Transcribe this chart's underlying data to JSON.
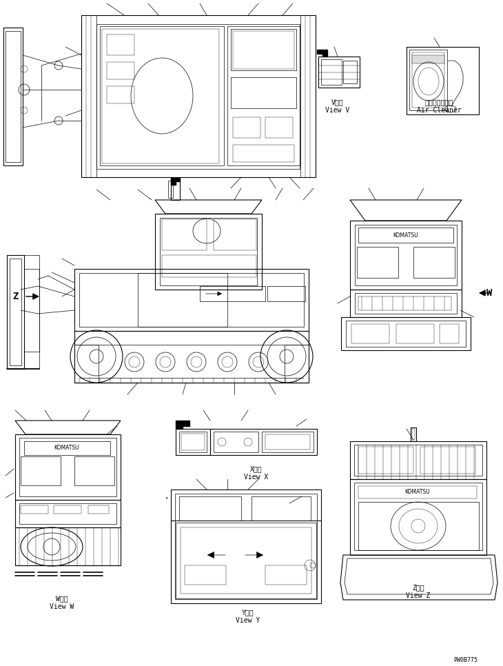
{
  "bg_color": "#ffffff",
  "line_color": "#000000",
  "figsize": [
    7.3,
    9.66
  ],
  "dpi": 100,
  "labels": {
    "view_v_jp": "V　視",
    "view_v_en": "View V",
    "air_cleaner_jp": "エアークリーナ",
    "air_cleaner_en": "Air Cleaner",
    "view_w_jp": "W　視",
    "view_w_en": "View W",
    "view_x_jp": "X　視",
    "view_x_en": "View X",
    "view_y_jp": "Y　視",
    "view_y_en": "View Y",
    "view_z_jp": "Z　視",
    "view_z_en": "View Z",
    "arrow_z": "Z",
    "arrow_w": "W",
    "code": "PW0B775"
  },
  "font_size_label": 7,
  "font_size_code": 6
}
